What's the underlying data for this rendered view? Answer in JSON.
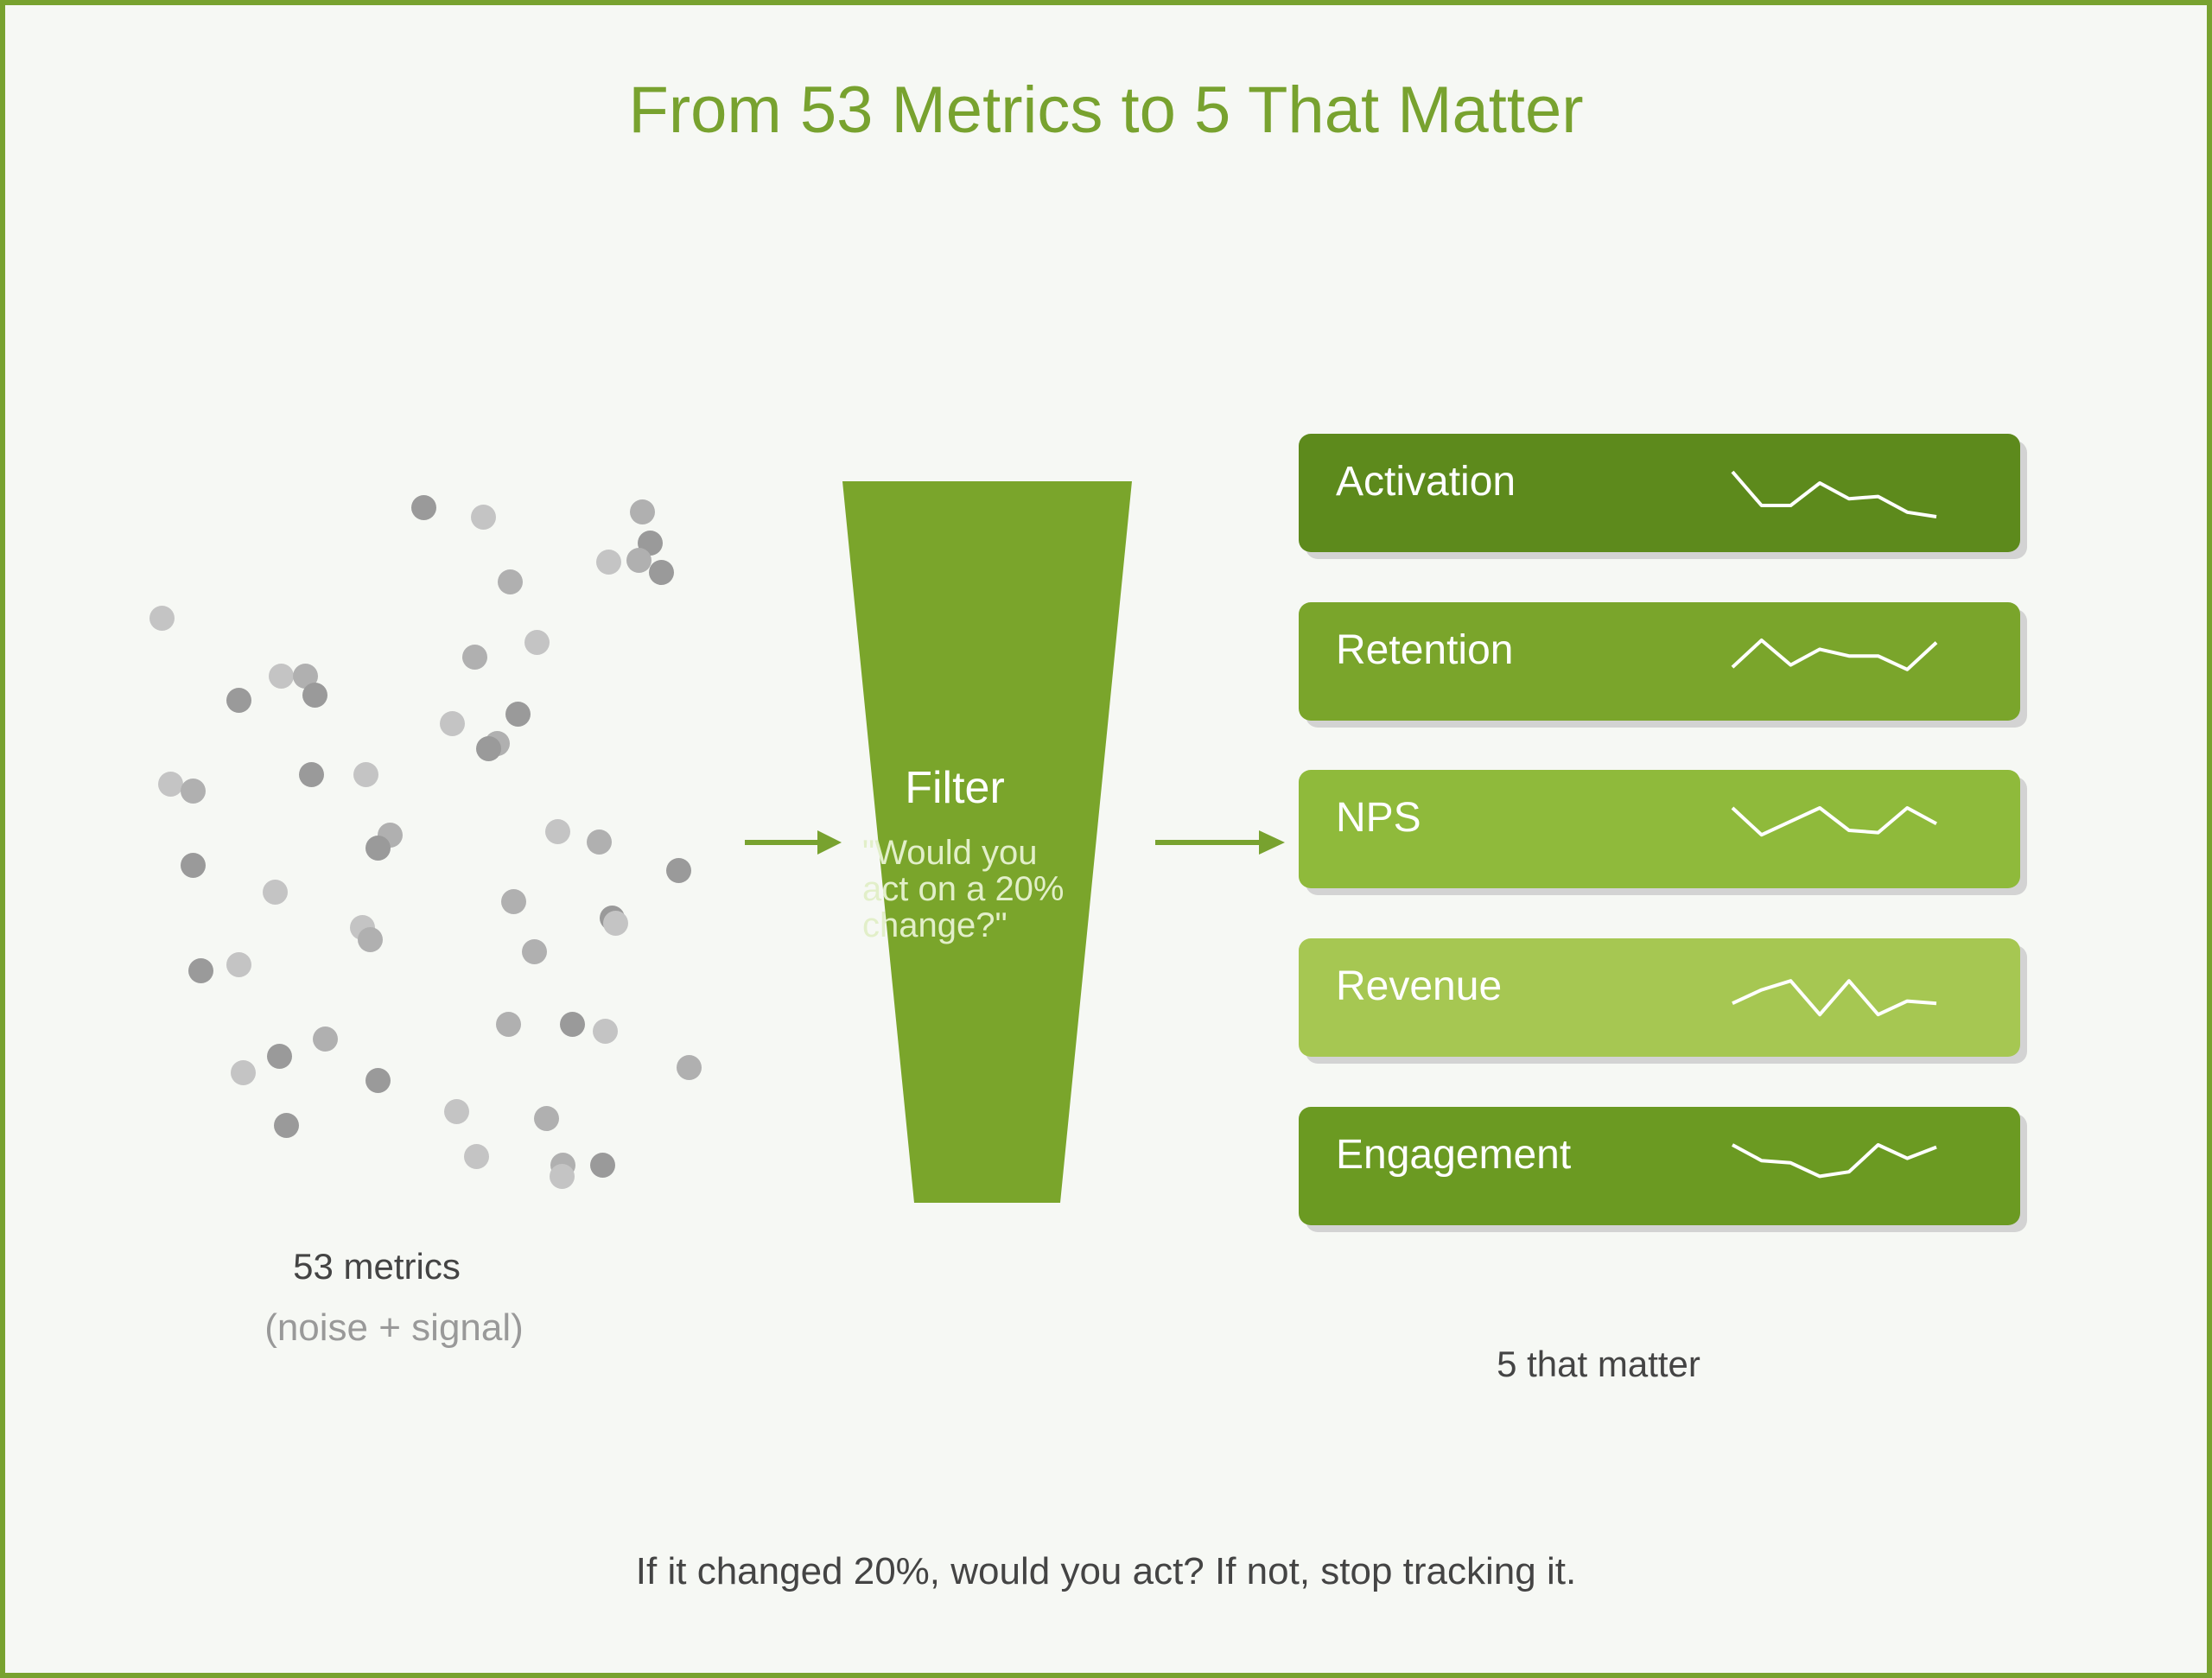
{
  "title": "From 53 Metrics to 5 That Matter",
  "left": {
    "label": "53 metrics",
    "sublabel": "(noise + signal)",
    "dot_colors": [
      "#9a9a9a",
      "#c4c4c4",
      "#b0b0b0"
    ]
  },
  "filter": {
    "label": "Filter",
    "question": "\"Would you\nact on a 20%\nchange?\""
  },
  "metrics": [
    {
      "name": "Activation",
      "color": "#5d8a1c",
      "trend": [
        0.0,
        0.75,
        0.75,
        0.25,
        0.6,
        0.55,
        0.9,
        1.0
      ]
    },
    {
      "name": "Retention",
      "color": "#7aa52b",
      "trend": [
        0.6,
        0.0,
        0.55,
        0.2,
        0.35,
        0.35,
        0.65,
        0.05
      ]
    },
    {
      "name": "NPS",
      "color": "#8fba3b",
      "trend": [
        0.0,
        0.6,
        0.3,
        0.0,
        0.5,
        0.55,
        0.0,
        0.35
      ]
    },
    {
      "name": "Revenue",
      "color": "#a6c752",
      "trend": [
        0.6,
        0.3,
        0.1,
        0.85,
        0.1,
        0.85,
        0.55,
        0.6
      ]
    },
    {
      "name": "Engagement",
      "color": "#6b9a22",
      "trend": [
        0.0,
        0.35,
        0.4,
        0.7,
        0.6,
        0.0,
        0.3,
        0.05
      ]
    }
  ],
  "right": {
    "label": "5 that matter"
  },
  "footer": "If it changed 20%, would you act? If not, stop tracking it.",
  "accent_color": "#78a22f"
}
